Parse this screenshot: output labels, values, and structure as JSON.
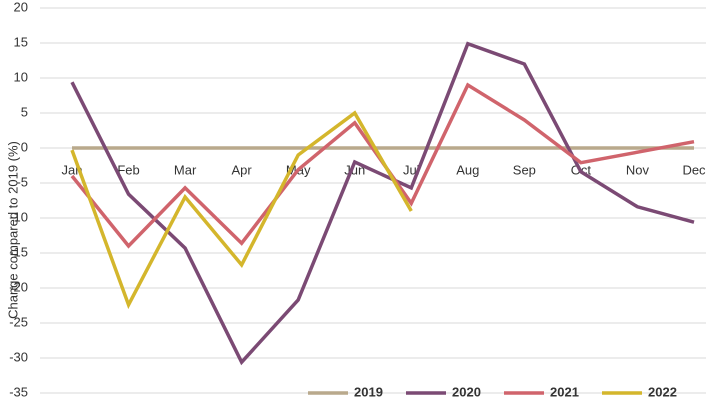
{
  "chart_data": {
    "type": "line",
    "y_label": "Change compared to 2019 (%)",
    "categories": [
      "Jan",
      "Feb",
      "Mar",
      "Apr",
      "May",
      "Jun",
      "Jul",
      "Aug",
      "Sep",
      "Oct",
      "Nov",
      "Dec"
    ],
    "series": [
      {
        "name": "2019",
        "color": "#b9a98c",
        "values": [
          0,
          0,
          0,
          0,
          0,
          0,
          0,
          0,
          0,
          0,
          0,
          0
        ]
      },
      {
        "name": "2020",
        "color": "#7b4a74",
        "values": [
          9.4,
          -6.6,
          -14.3,
          -30.6,
          -21.7,
          -2,
          -5.7,
          14.9,
          12,
          -3.4,
          -8.4,
          -10.6
        ]
      },
      {
        "name": "2021",
        "color": "#d0646c",
        "values": [
          -4,
          -14,
          -5.7,
          -13.6,
          -3.1,
          3.6,
          -7.9,
          9,
          4,
          -2.1,
          -0.6,
          0.9
        ]
      },
      {
        "name": "2022",
        "color": "#d4b62c",
        "values": [
          -0.3,
          -22.4,
          -7,
          -16.7,
          -1,
          5,
          -9,
          null,
          null,
          null,
          null,
          null
        ]
      }
    ],
    "ylim": [
      -35,
      20
    ],
    "yticks": [
      -35,
      -30,
      -25,
      -20,
      -15,
      -10,
      -5,
      0,
      5,
      10,
      15,
      20
    ],
    "grid": true
  }
}
